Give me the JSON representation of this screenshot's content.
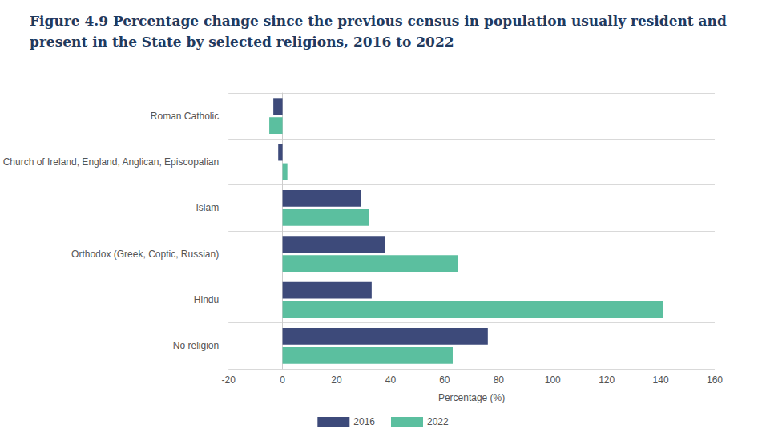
{
  "chart_data": {
    "type": "bar",
    "orientation": "horizontal",
    "title": "Figure 4.9 Percentage change since the previous census in population usually resident and present in the State by selected religions, 2016 to 2022",
    "xlabel": "Percentage (%)",
    "categories": [
      "Roman Catholic",
      "Church of Ireland, England, Anglican, Episcopalian",
      "Islam",
      "Orthodox (Greek, Coptic, Russian)",
      "Hindu",
      "No religion"
    ],
    "series": [
      {
        "name": "2016",
        "color": "#3d4a7a",
        "values": [
          -3.4,
          -1.6,
          29,
          38,
          33,
          76
        ]
      },
      {
        "name": "2022",
        "color": "#5bbf9f",
        "values": [
          -4.9,
          1.8,
          32,
          65,
          141,
          63
        ]
      }
    ],
    "xlim": [
      -20,
      160
    ],
    "xticks": [
      -20,
      0,
      20,
      40,
      60,
      80,
      100,
      120,
      140,
      160
    ],
    "grid": true,
    "legend": "bottom"
  }
}
